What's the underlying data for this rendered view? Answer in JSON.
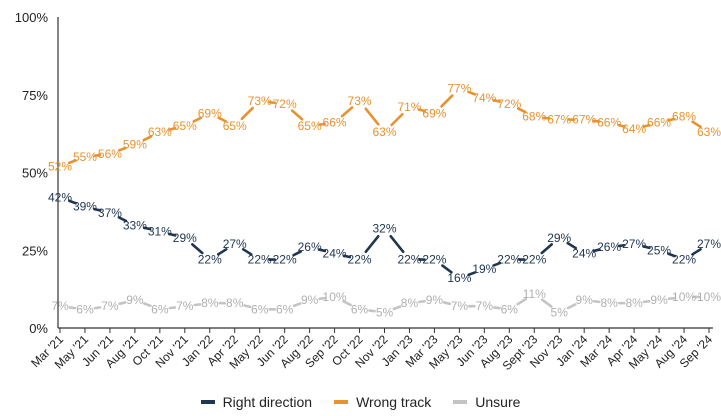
{
  "chart_data": {
    "type": "line",
    "categories": [
      "Mar '21",
      "May '21",
      "Jun '21",
      "Aug '21",
      "Oct '21",
      "Nov '21",
      "Jan '22",
      "Apr '22",
      "May '22",
      "Jun '22",
      "Aug '22",
      "Sep '22",
      "Oct '22",
      "Nov '22",
      "Jan '23",
      "Mar '23",
      "May '23",
      "Jun '23",
      "Aug '23",
      "Sept '23",
      "Nov '23",
      "Jan '24",
      "Mar '24",
      "Apr '24",
      "May '24",
      "Aug '24",
      "Sep '24"
    ],
    "series": [
      {
        "name": "Right direction",
        "color": "#1f3550",
        "values": [
          42,
          39,
          37,
          33,
          31,
          29,
          22,
          27,
          22,
          22,
          26,
          24,
          22,
          32,
          22,
          22,
          16,
          19,
          22,
          22,
          29,
          24,
          26,
          27,
          25,
          22,
          27
        ]
      },
      {
        "name": "Wrong track",
        "color": "#e8922e",
        "values": [
          52,
          55,
          56,
          59,
          63,
          65,
          69,
          65,
          73,
          72,
          65,
          66,
          73,
          63,
          71,
          69,
          77,
          74,
          72,
          68,
          67,
          67,
          66,
          64,
          66,
          68,
          63
        ]
      },
      {
        "name": "Unsure",
        "color": "#c4c4c4",
        "values": [
          7,
          6,
          7,
          9,
          6,
          7,
          8,
          8,
          6,
          6,
          9,
          10,
          6,
          5,
          8,
          9,
          7,
          7,
          6,
          11,
          5,
          9,
          8,
          8,
          9,
          10,
          10
        ]
      }
    ],
    "y_ticks": [
      "0%",
      "25%",
      "50%",
      "75%",
      "100%"
    ],
    "ylim": [
      0,
      100
    ],
    "value_suffix": "%",
    "grid": false,
    "legend_position": "bottom"
  }
}
